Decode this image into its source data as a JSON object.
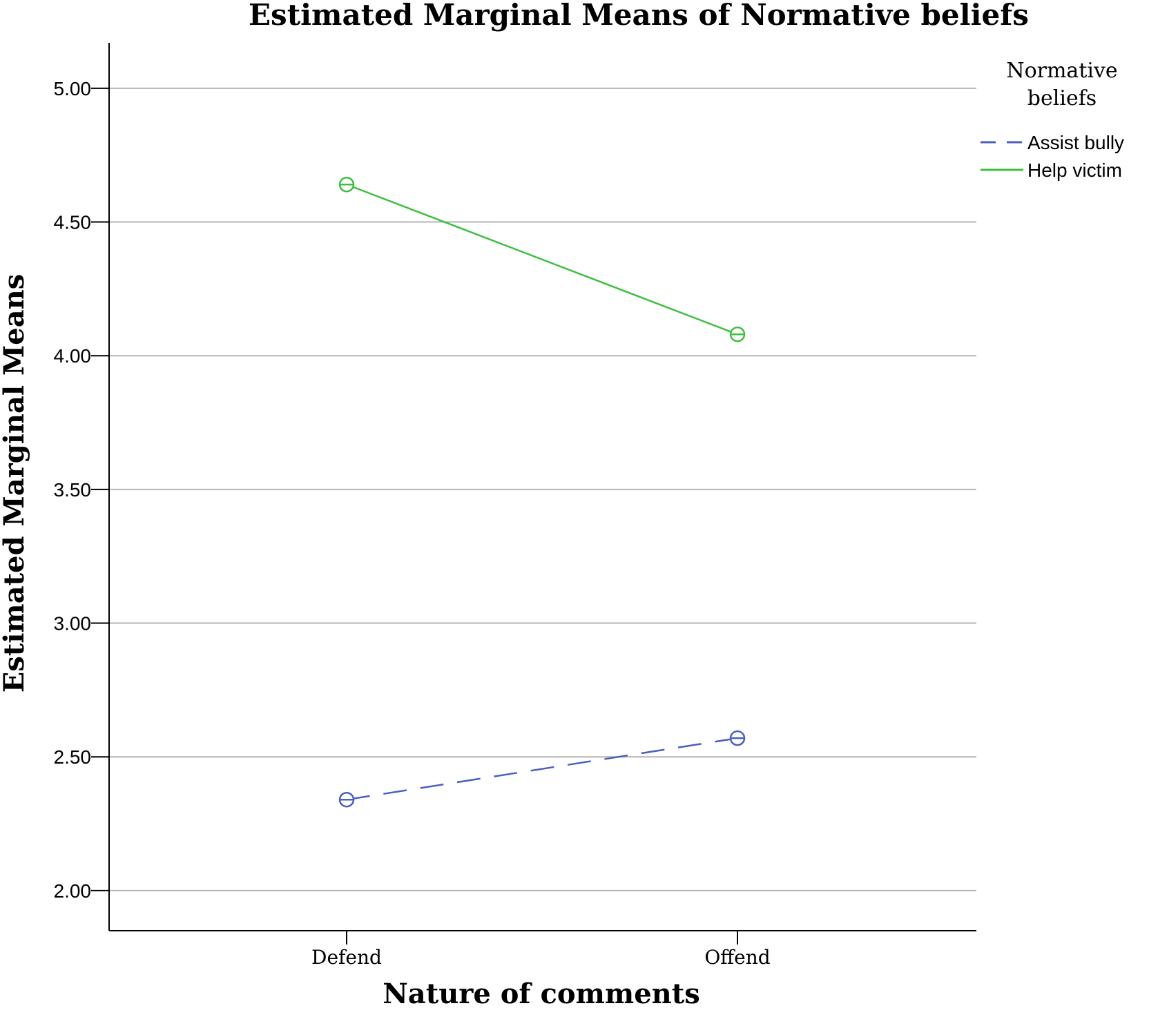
{
  "chart_data": {
    "type": "line",
    "title": "Estimated Marginal Means of Normative beliefs",
    "xlabel": "Nature of comments",
    "ylabel": "Estimated Marginal Means",
    "categories": [
      "Defend",
      "Offend"
    ],
    "ylim": [
      1.85,
      5.17
    ],
    "yticks": [
      2.0,
      2.5,
      3.0,
      3.5,
      4.0,
      4.5,
      5.0
    ],
    "ytick_labels": [
      "2.00",
      "2.50",
      "3.00",
      "3.50",
      "4.00",
      "4.50",
      "5.00"
    ],
    "grid": true,
    "legend": {
      "title_lines": [
        "Normative",
        "beliefs"
      ],
      "placement": "top-right"
    },
    "series": [
      {
        "name": "Assist bully",
        "values": [
          2.34,
          2.57
        ],
        "color": "#4b5fbf",
        "line_style": "dashed",
        "marker": "open-circle"
      },
      {
        "name": "Help victim",
        "values": [
          4.64,
          4.08
        ],
        "color": "#3fbf3f",
        "line_style": "solid",
        "marker": "open-circle"
      }
    ]
  }
}
